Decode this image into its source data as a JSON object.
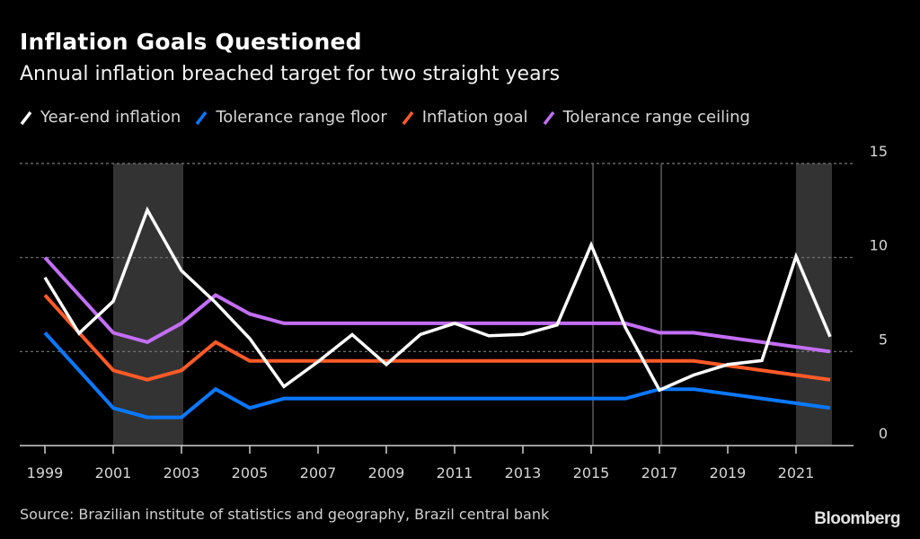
{
  "header": {
    "title": "Inflation Goals Questioned",
    "subtitle": "Annual inflation breached target for two straight years"
  },
  "legend": [
    {
      "label": "Year-end inflation",
      "color": "#ffffff"
    },
    {
      "label": "Tolerance range floor",
      "color": "#0a78ff"
    },
    {
      "label": "Inflation goal",
      "color": "#ff5a28"
    },
    {
      "label": "Tolerance range ceiling",
      "color": "#c36ef5"
    }
  ],
  "footer": {
    "source": "Source: Brazilian institute of statistics and geography, Brazil central bank",
    "logo": "Bloomberg"
  },
  "chart_data": {
    "type": "line",
    "title": "Inflation Goals Questioned",
    "subtitle": "Annual inflation breached target for two straight years",
    "xlabel": "",
    "ylabel": "",
    "x": [
      1999,
      2000,
      2001,
      2002,
      2003,
      2004,
      2005,
      2006,
      2007,
      2008,
      2009,
      2010,
      2011,
      2012,
      2013,
      2014,
      2015,
      2016,
      2017,
      2018,
      2019,
      2020,
      2021,
      2022
    ],
    "xlim": [
      1999,
      2022
    ],
    "x_ticks": [
      "1999",
      "2001",
      "2003",
      "2005",
      "2007",
      "2009",
      "2011",
      "2013",
      "2015",
      "2017",
      "2019",
      "2021"
    ],
    "x_tick_values": [
      1999,
      2001,
      2003,
      2005,
      2007,
      2009,
      2011,
      2013,
      2015,
      2017,
      2019,
      2021
    ],
    "ylim": [
      0,
      15
    ],
    "y_ticks": [
      0,
      5,
      10,
      15
    ],
    "y_axis_side": "right",
    "grid": true,
    "legend_position": "top-left",
    "series": [
      {
        "name": "Year-end inflation",
        "color": "#ffffff",
        "values": [
          8.94,
          5.97,
          7.67,
          12.53,
          9.3,
          7.6,
          5.69,
          3.14,
          4.46,
          5.9,
          4.31,
          5.91,
          6.5,
          5.84,
          5.91,
          6.41,
          10.67,
          6.29,
          2.95,
          3.75,
          4.31,
          4.52,
          10.06,
          5.79
        ]
      },
      {
        "name": "Tolerance range floor",
        "color": "#0a78ff",
        "values": [
          6.0,
          4.0,
          2.0,
          1.5,
          1.5,
          3.0,
          2.0,
          2.5,
          2.5,
          2.5,
          2.5,
          2.5,
          2.5,
          2.5,
          2.5,
          2.5,
          2.5,
          2.5,
          3.0,
          3.0,
          2.75,
          2.5,
          2.25,
          2.0
        ]
      },
      {
        "name": "Inflation goal",
        "color": "#ff5a28",
        "values": [
          8.0,
          6.0,
          4.0,
          3.5,
          4.0,
          5.5,
          4.5,
          4.5,
          4.5,
          4.5,
          4.5,
          4.5,
          4.5,
          4.5,
          4.5,
          4.5,
          4.5,
          4.5,
          4.5,
          4.5,
          4.25,
          4.0,
          3.75,
          3.5
        ]
      },
      {
        "name": "Tolerance range ceiling",
        "color": "#c36ef5",
        "values": [
          10.0,
          8.0,
          6.0,
          5.5,
          6.5,
          8.0,
          7.0,
          6.5,
          6.5,
          6.5,
          6.5,
          6.5,
          6.5,
          6.5,
          6.5,
          6.5,
          6.5,
          6.5,
          6.0,
          6.0,
          5.75,
          5.5,
          5.25,
          5.0
        ]
      }
    ],
    "shaded_ranges": [
      [
        2001,
        2003
      ],
      [
        2021,
        2022
      ]
    ],
    "vertical_markers": [
      2015,
      2017
    ]
  }
}
